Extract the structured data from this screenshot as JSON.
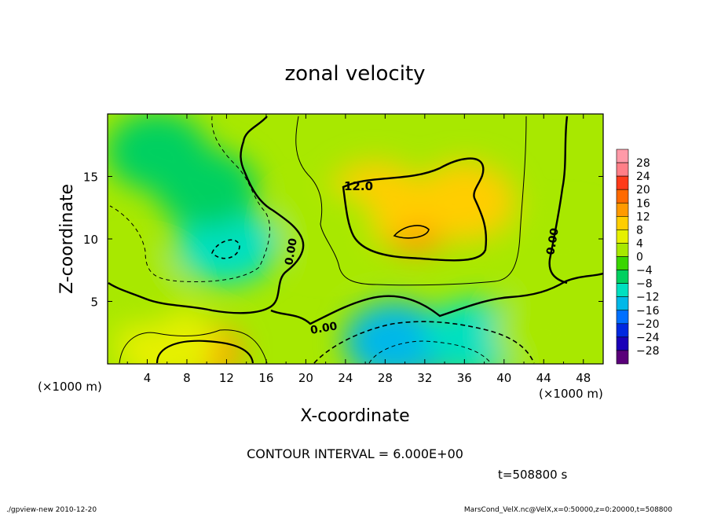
{
  "chart_data": {
    "type": "heatmap",
    "title": "zonal velocity",
    "xlabel": "X-coordinate",
    "ylabel": "Z-coordinate",
    "x_unit": "(×1000 m)",
    "y_unit": "(×1000 m)",
    "xlim": [
      0,
      50
    ],
    "ylim": [
      0,
      20
    ],
    "x_ticks": [
      "4",
      "8",
      "12",
      "16",
      "20",
      "24",
      "28",
      "32",
      "36",
      "40",
      "44",
      "48"
    ],
    "y_ticks": [
      "5",
      "10",
      "15"
    ],
    "colorbar_labels": [
      "28",
      "24",
      "20",
      "16",
      "12",
      "8",
      "4",
      "0",
      "−4",
      "−8",
      "−12",
      "−16",
      "−20",
      "−24",
      "−28"
    ],
    "colorbar_colors": [
      "#ff7f88",
      "#ff3b1a",
      "#ff6a00",
      "#ff9a00",
      "#ffce00",
      "#e6f000",
      "#a8e800",
      "#3ad600",
      "#00d060",
      "#00e0c0",
      "#00b8e8",
      "#0070ff",
      "#0028e0",
      "#1a00b8",
      "#5a007a"
    ],
    "contour_labels": [
      "12.0",
      "0.00",
      "0.00",
      "0.00"
    ],
    "contour_interval_text": "CONTOUR INTERVAL = 6.000E+00",
    "time_text": "t=508800 s",
    "blobs": [
      {
        "x": 31,
        "y": 11.0,
        "value": 17
      },
      {
        "x": 27,
        "y": 13.0,
        "value": 11
      },
      {
        "x": 36,
        "y": 13.0,
        "value": 10
      },
      {
        "x": 12,
        "y": 9.5,
        "value": -9
      },
      {
        "x": 10,
        "y": 14.0,
        "value": -5
      },
      {
        "x": 5,
        "y": 17.0,
        "value": -4
      },
      {
        "x": 33,
        "y": 1.2,
        "value": -20
      },
      {
        "x": 29,
        "y": 1.8,
        "value": -12
      },
      {
        "x": 37,
        "y": 2.0,
        "value": -10
      },
      {
        "x": 10,
        "y": 1.0,
        "value": 16
      },
      {
        "x": 6,
        "y": 1.5,
        "value": 8
      },
      {
        "x": 46,
        "y": 9.0,
        "value": 2
      },
      {
        "x": 44,
        "y": 2.5,
        "value": 3
      },
      {
        "x": 3,
        "y": 6.0,
        "value": 2
      },
      {
        "x": 22,
        "y": 11.0,
        "value": 4
      }
    ]
  },
  "footer": {
    "left": "./gpview-new   2010-12-20",
    "right": "MarsCond_VelX.nc@VelX,x=0:50000,z=0:20000,t=508800"
  }
}
